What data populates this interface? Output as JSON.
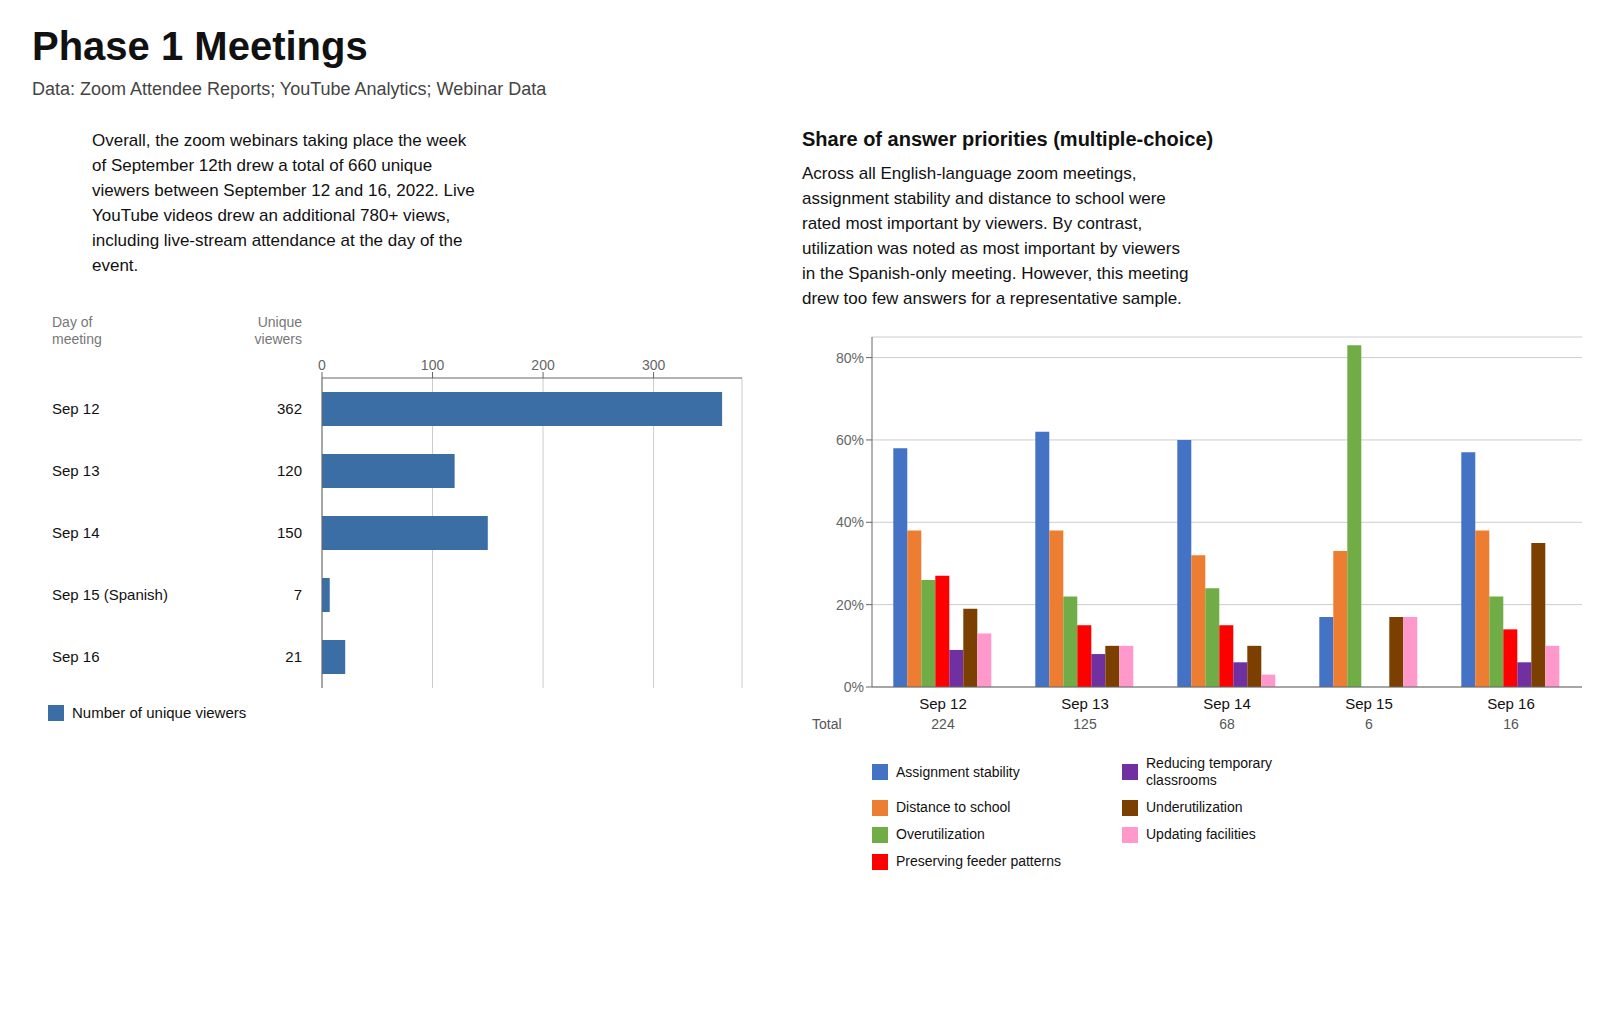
{
  "title": "Phase 1 Meetings",
  "subtitle": "Data: Zoom Attendee Reports; YouTube Analytics; Webinar Data",
  "chart_data": [
    {
      "type": "bar",
      "orientation": "horizontal",
      "annotations": [
        "Overall, the zoom webinars taking place the week\nof September 12th drew a total of 660 unique\nviewers between September 12 and 16, 2022. Live\nYouTube videos drew an additional 780+ views,\nincluding live-stream attendance at the day of the\nevent.",
        "Unique\nviewers"
      ],
      "ylabel": "Day of\nmeeting",
      "categories": [
        "Sep 12",
        "Sep 13",
        "Sep 14",
        "Sep 15 (Spanish)",
        "Sep 16"
      ],
      "series": [
        {
          "name": "Number of unique viewers",
          "color": "#3A6EA5",
          "values": [
            362,
            120,
            150,
            7,
            21
          ]
        }
      ],
      "xlim": [
        0,
        380
      ],
      "xticks": [
        0,
        100,
        200,
        300
      ],
      "grid": true,
      "data_labels": true,
      "legend": "lower left"
    },
    {
      "type": "bar",
      "title": "Share of answer priorities (multiple-choice)",
      "annotations": [
        "Across all English-language zoom meetings,\nassignment stability and distance to school were\nrated most important by viewers. By contrast,\nutilization was noted as most important by viewers\nin the Spanish-only meeting. However, this meeting\ndrew too few answers for a representative sample."
      ],
      "categories": [
        "Sep 12",
        "Sep 13",
        "Sep 14",
        "Sep 15",
        "Sep 16"
      ],
      "totals": [
        224,
        125,
        68,
        6,
        16
      ],
      "totals_label": "Total",
      "series": [
        {
          "name": "Assignment stability",
          "color": "#4472C4",
          "values": [
            0.58,
            0.62,
            0.6,
            0.17,
            0.57
          ]
        },
        {
          "name": "Distance to school",
          "color": "#ED7D31",
          "values": [
            0.38,
            0.38,
            0.32,
            0.33,
            0.38
          ]
        },
        {
          "name": "Overutilization",
          "color": "#70AD47",
          "values": [
            0.26,
            0.22,
            0.24,
            0.83,
            0.22
          ]
        },
        {
          "name": "Preserving feeder patterns",
          "color": "#FF0000",
          "values": [
            0.27,
            0.15,
            0.15,
            0.0,
            0.14
          ]
        },
        {
          "name": "Reducing temporary\nclassrooms",
          "color": "#7030A0",
          "values": [
            0.09,
            0.08,
            0.06,
            0.0,
            0.06
          ]
        },
        {
          "name": "Underutilization",
          "color": "#7B3F00",
          "values": [
            0.19,
            0.1,
            0.1,
            0.17,
            0.35
          ]
        },
        {
          "name": "Updating facilities",
          "color": "#FF99CC",
          "values": [
            0.13,
            0.1,
            0.03,
            0.17,
            0.1
          ]
        }
      ],
      "ylim": [
        0,
        0.85
      ],
      "yticks": [
        {
          "value": 0.0,
          "label": "0%"
        },
        {
          "value": 0.2,
          "label": "20%"
        },
        {
          "value": 0.4,
          "label": "40%"
        },
        {
          "value": 0.6,
          "label": "60%"
        },
        {
          "value": 0.8,
          "label": "80%"
        }
      ],
      "grid": true,
      "legend": "lower left"
    }
  ]
}
